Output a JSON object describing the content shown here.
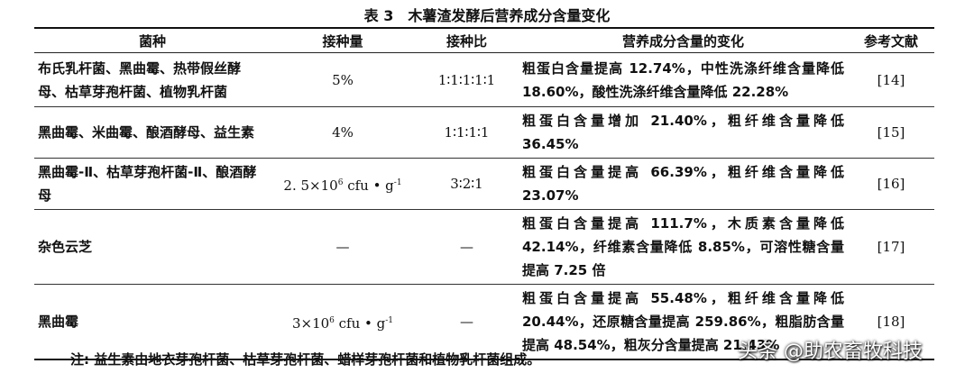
{
  "title": "表 3　木薯渣发酵后营养成分含量变化",
  "table": {
    "header": [
      "菌种",
      "接种量",
      "接种比",
      "营养成分含量的变化",
      "参考文献"
    ],
    "rows": [
      [
        "布氏乳杆菌、黑曲霉、热带假丝酵母、枯草芽孢杆菌、植物乳杆菌",
        "5%",
        "1∶1∶1∶1∶1",
        "粗蛋白含量提高 12.74%，中性洗涤纤维含量降低 18.60%，酸性洗涤纤维含量降低 22.28%",
        "[14]"
      ],
      [
        "黑曲霉、米曲霉、酿酒酵母、益生素",
        "4%",
        "1∶1∶1∶1",
        "粗蛋白含量增加 21.40%，粗纤维含量降低 36.45%",
        "[15]"
      ],
      [
        "黑曲霉-Ⅱ、枯草芽孢杆菌-Ⅱ、酿酒酵母",
        {
          "base": "2. 5×10",
          "exp": "6",
          "unit": " cfu • g",
          "unit_exp": "-1"
        },
        "3∶2∶1",
        "粗蛋白含量提高 66.39%，粗纤维含量降低 23.07%",
        "[16]"
      ],
      [
        "杂色云芝",
        "—",
        "—",
        "粗蛋白含量提高 111.7%，木质素含量降低 42.14%，纤维素含量降低 8.85%，可溶性糖含量提高 7.25 倍",
        "[17]"
      ],
      [
        "黑曲霉",
        {
          "base": "3×10",
          "exp": "6",
          "unit": " cfu • g",
          "unit_exp": "-1"
        },
        "—",
        "粗蛋白含量提高 55.48%，粗纤维含量降低 20.44%，还原糖含量提高 259.86%，粗脂肪含量提高 48.54%，粗灰分含量提高 21.43%",
        "[18]"
      ]
    ]
  },
  "note": "注: 益生素由地衣芽孢杆菌、枯草芽孢杆菌、蜡样芽孢杆菌和植物乳杆菌组成。",
  "watermark": "头条 @助农畜牧科技"
}
